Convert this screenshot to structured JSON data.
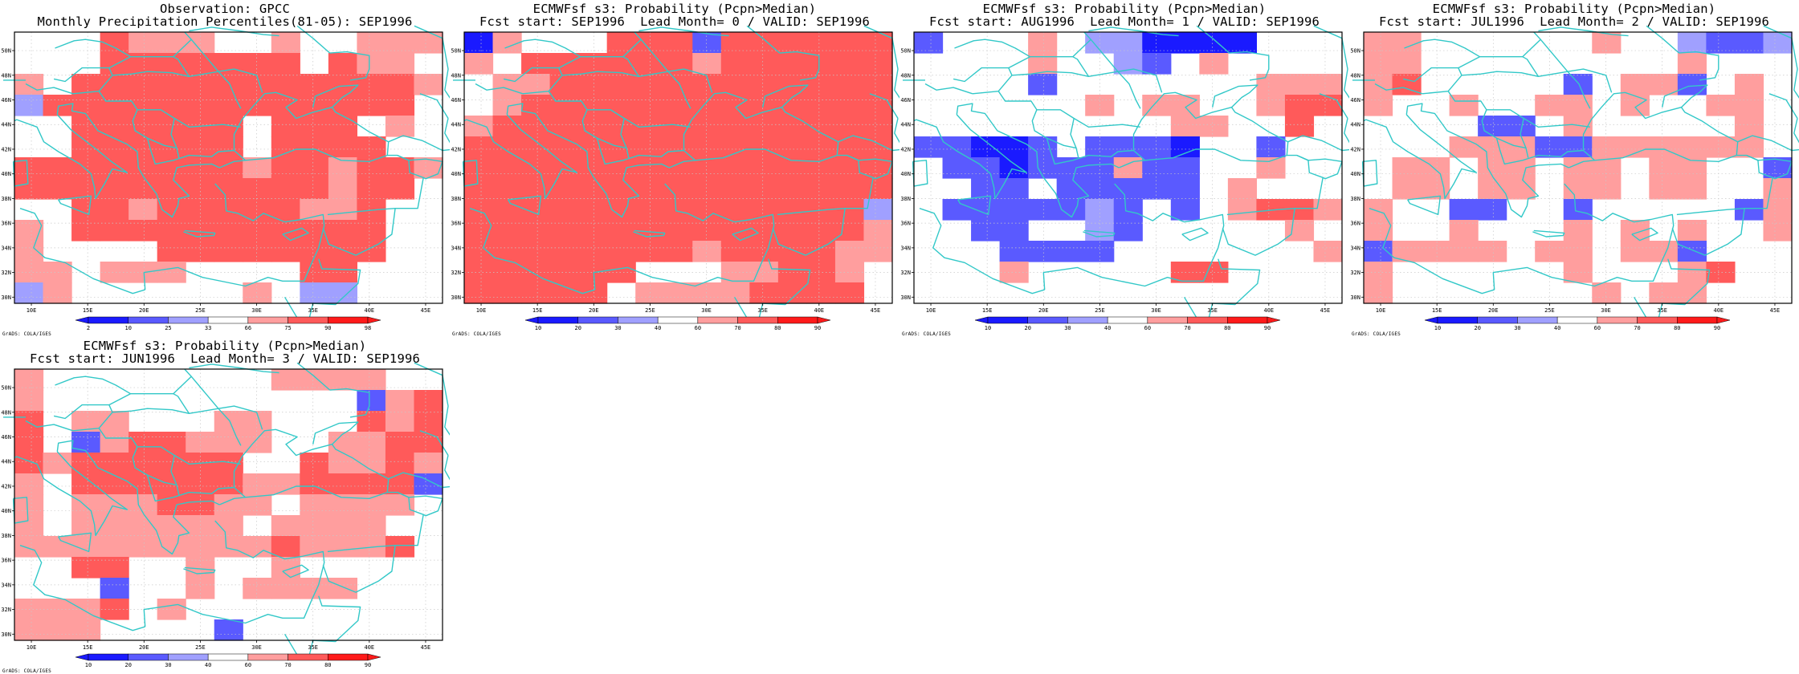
{
  "credit": "GrADS: COLA/IGES",
  "lon_ticks": [
    "10E",
    "15E",
    "20E",
    "25E",
    "30E",
    "35E",
    "40E",
    "45E"
  ],
  "lat_ticks": [
    "30N",
    "32N",
    "34N",
    "36N",
    "38N",
    "40N",
    "42N",
    "44N",
    "46N",
    "48N",
    "50N"
  ],
  "colors": {
    "coast": "#32c8c8",
    "dark_blue": "#1a1aff",
    "mid_blue": "#5a5aff",
    "light_blue": "#a0a0ff",
    "white": "#ffffff",
    "light_red": "#ff9e9e",
    "mid_red": "#ff5a5a",
    "dark_red": "#ff1a1a"
  },
  "obs_scale": [
    "2",
    "10",
    "25",
    "33",
    "66",
    "75",
    "90",
    "98"
  ],
  "prob_scale": [
    "10",
    "20",
    "30",
    "40",
    "60",
    "70",
    "80",
    "90"
  ],
  "panels": [
    {
      "title1": "Observation: GPCC",
      "title2": "Monthly Precipitation Percentiles(81-05): SEP1996",
      "scale": "obs"
    },
    {
      "title1": "ECMWFsf s3: Probability (Pcpn>Median)",
      "title2": "Fcst start: SEP1996  Lead Month= 0 / VALID: SEP1996",
      "scale": "prob"
    },
    {
      "title1": "ECMWFsf s3: Probability (Pcpn>Median)",
      "title2": "Fcst start: AUG1996  Lead Month= 1 / VALID: SEP1996",
      "scale": "prob"
    },
    {
      "title1": "ECMWFsf s3: Probability (Pcpn>Median)",
      "title2": "Fcst start: JUL1996  Lead Month= 2 / VALID: SEP1996",
      "scale": "prob"
    },
    {
      "title1": "ECMWFsf s3: Probability (Pcpn>Median)",
      "title2": "Fcst start: JUN1996  Lead Month= 3 / VALID: SEP1996",
      "scale": "prob"
    }
  ],
  "grids": [
    [
      "WWWRLLLWWLWWLLL",
      "WWWRRRRRRRWRLLW",
      "LWRRRRRRRRRRRRL",
      "BRRRRRRRRRRRRRW",
      "WWRRRRRRWRRRWLW",
      "WWRRRRRRWRRRRWW",
      "RRRRRRRRLRRLRRL",
      "RRRRRRRRRRRLRRW",
      "WWRRLRRRRRLLRWW",
      "LWRRRRRRRRRRRWW",
      "LWWWWRRRRRRRRWW",
      "LLWLLLWWWWRRWWW",
      "BLWWWWWWLWBBWWW"
    ],
    [
      "DLWWWRRRMRRRRRR",
      "LWRRRRRRLRRRRRR",
      "WLLRRRRRRRRRRRR",
      "WLRRRRRRRRRRRRR",
      "LRRRRRRRRRRRRRR",
      "RRRRRRRRRRRRRRR",
      "RRRRRRRRRRRRRRR",
      "RRRRRRRRRRRRRRR",
      "RRRRRRRRRRRRRRB",
      "RRRRRRRRRRRRRRL",
      "RRRRRRRRLRRRRLL",
      "RRRRRRWWWLLRRLW",
      "RRRRRWLLLLRRRRW"
    ],
    [
      "MWWWLWBBDDDDWWW",
      "WWWWLWWBMWLWWWW",
      "WWWWMWWWWWWWLLL",
      "WWWWWWLWLLWWLRR",
      "WWWWWWWWWLLWWRW",
      "MMDDMWMMMDWWMWW",
      "WMMDMMMLMMWWLWW",
      "WWMMWMMMMMWLWWW",
      "WMMMMMBMWMWLRRL",
      "WWMMWWBMWWWWWLW",
      "WWWMMMMWWWWWWWL",
      "WWWLWWWWWRRWWWW",
      "WWWWWWWWWWWWWWW"
    ],
    [
      "LLWWWWWWLWWBMMB",
      "LLWWWWWWWWWLWWW",
      "LRWWWWWMWLLMWLW",
      "LWWLWWLLWLWWLLW",
      "WWWWMMWLWWWWWLW",
      "WWWLLLMMLLLLLLW",
      "WLLWLLWLLWLLWWM",
      "WLLWLLWLLWLLWWL",
      "LWWMMWWMWWWWWML",
      "LWWLWWWLWLWLWWL",
      "MLLLLWLLWLLMWWW",
      "LWWWWWWLWWWLRWW",
      "LWWWWWWWLWLLWWW"
    ],
    [
      "LWWWWWWWWLLLLWW",
      "LWWWWWWWWWWWMLR",
      "RWLLWWWLLWWWRLR",
      "RWMLRRLLLWWLLRR",
      "RLRRRRRRWWRLLRL",
      "LWRRRRRRLLRRRRM",
      "LWLLLRRLLWLLLLW",
      "LWLLLLLLWLLLLWW",
      "LLLLLLLLLRLLLRW",
      "WWRRWWLWWLWWWWW",
      "WWWMWWLWLLLLWWW",
      "LLLRWLWWWWWWWWW",
      "LLLWWWWMWWWWWWW"
    ]
  ]
}
